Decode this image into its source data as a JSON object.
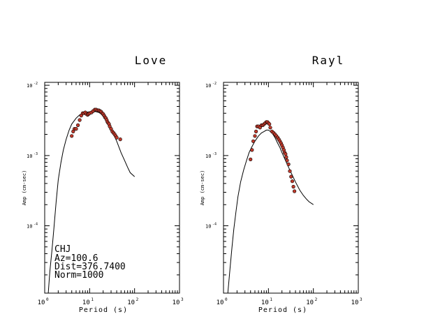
{
  "figure": {
    "station_info": [
      "CHJ",
      "Az=100.6",
      "Dist=376.7400",
      "Norm=1000"
    ]
  },
  "chart_data": [
    {
      "type": "scatter",
      "title": "Love",
      "xlabel": "Period (s)",
      "ylabel": "Amp (cm-sec)",
      "xscale": "log",
      "yscale": "log",
      "xlim": [
        1,
        1000
      ],
      "ylim": [
        1.1e-05,
        0.011
      ],
      "x_ticks": [
        {
          "label": "10",
          "exp": "0"
        },
        {
          "label": "10",
          "exp": "1"
        },
        {
          "label": "10",
          "exp": "2"
        },
        {
          "label": "10",
          "exp": "3"
        }
      ],
      "y_ticks": [
        {
          "label": "10",
          "exp": "-4"
        },
        {
          "label": "10",
          "exp": "-3"
        },
        {
          "label": "10",
          "exp": "-2"
        }
      ],
      "series": [
        {
          "kind": "observed",
          "color": "#c0392b",
          "x": [
            4.0,
            4.3,
            4.6,
            5.0,
            5.5,
            6.0,
            6.5,
            7.0,
            7.5,
            8.0,
            8.5,
            9.0,
            9.5,
            10.0,
            11.0,
            12.0,
            13.0,
            14.0,
            15.0,
            16.0,
            17.0,
            18.0,
            19.0,
            20.0,
            21.0,
            22.0,
            23.0,
            24.0,
            25.0,
            26.0,
            27.0,
            28.0,
            30.0,
            32.0,
            34.0,
            36.0,
            38.0,
            40.0,
            48.0
          ],
          "y": [
            0.0019,
            0.0022,
            0.0024,
            0.0024,
            0.0027,
            0.0032,
            0.0037,
            0.004,
            0.004,
            0.0041,
            0.0039,
            0.0038,
            0.0039,
            0.004,
            0.0041,
            0.0043,
            0.0045,
            0.0045,
            0.0044,
            0.0044,
            0.0043,
            0.0042,
            0.004,
            0.0039,
            0.0037,
            0.0035,
            0.0034,
            0.0032,
            0.003,
            0.0029,
            0.0028,
            0.0026,
            0.0024,
            0.0022,
            0.0021,
            0.002,
            0.0019,
            0.0018,
            0.0017
          ]
        },
        {
          "kind": "synthetic",
          "color": "#000000",
          "x": [
            1.2,
            1.3,
            1.45,
            1.6,
            1.8,
            2.0,
            2.3,
            2.6,
            3.0,
            3.5,
            4.0,
            5.0,
            6.0,
            7.0,
            8.0,
            10.0,
            12.0,
            14.0,
            16.0,
            18.0,
            20.0,
            25.0,
            30.0,
            40.0,
            50.0,
            60.0,
            70.0,
            80.0,
            100.0
          ],
          "y": [
            1.1e-05,
            2.2e-05,
            4.5e-05,
            9e-05,
            0.00022,
            0.00045,
            0.0008,
            0.0012,
            0.0017,
            0.0023,
            0.0028,
            0.0034,
            0.0038,
            0.004,
            0.0041,
            0.0042,
            0.0043,
            0.0042,
            0.0041,
            0.0039,
            0.0036,
            0.003,
            0.0024,
            0.0016,
            0.0011,
            0.00085,
            0.00068,
            0.00057,
            0.0005
          ]
        }
      ]
    },
    {
      "type": "scatter",
      "title": "Rayl",
      "xlabel": "Period (s)",
      "ylabel": "Amp (cm-sec)",
      "xscale": "log",
      "yscale": "log",
      "xlim": [
        1,
        1000
      ],
      "ylim": [
        1.1e-05,
        0.011
      ],
      "x_ticks": [
        {
          "label": "10",
          "exp": "0"
        },
        {
          "label": "10",
          "exp": "1"
        },
        {
          "label": "10",
          "exp": "2"
        },
        {
          "label": "10",
          "exp": "3"
        }
      ],
      "y_ticks": [
        {
          "label": "10",
          "exp": "-4"
        },
        {
          "label": "10",
          "exp": "-3"
        },
        {
          "label": "10",
          "exp": "-2"
        }
      ],
      "series": [
        {
          "kind": "observed",
          "color": "#c0392b",
          "x": [
            4.0,
            4.3,
            4.6,
            5.0,
            5.3,
            5.6,
            6.0,
            6.5,
            7.0,
            7.5,
            8.0,
            8.5,
            9.0,
            9.5,
            10.0,
            10.5,
            11.0,
            12.0,
            13.0,
            14.0,
            15.0,
            16.0,
            17.0,
            18.0,
            19.0,
            20.0,
            21.0,
            22.0,
            23.0,
            24.0,
            25.0,
            26.0,
            28.0,
            30.0,
            32.0,
            34.0,
            36.0,
            38.0
          ],
          "y": [
            0.00088,
            0.0012,
            0.0016,
            0.0019,
            0.0022,
            0.0026,
            0.0026,
            0.0025,
            0.0027,
            0.0027,
            0.0028,
            0.0029,
            0.003,
            0.003,
            0.0029,
            0.0028,
            0.0025,
            0.0022,
            0.0021,
            0.002,
            0.0019,
            0.0018,
            0.0017,
            0.0016,
            0.0015,
            0.0014,
            0.0013,
            0.0012,
            0.0011,
            0.00105,
            0.00095,
            0.00085,
            0.00075,
            0.0006,
            0.0005,
            0.00043,
            0.00036,
            0.00031
          ]
        },
        {
          "kind": "synthetic",
          "color": "#000000",
          "x": [
            1.25,
            1.4,
            1.55,
            1.7,
            1.9,
            2.1,
            2.4,
            2.8,
            3.2,
            3.7,
            4.2,
            5.0,
            6.0,
            7.0,
            8.0,
            9.0,
            10.0,
            11.0,
            12.0,
            14.0,
            16.0,
            18.0,
            20.0,
            25.0,
            30.0,
            40.0,
            50.0,
            60.0,
            70.0,
            80.0,
            100.0
          ],
          "y": [
            1.1e-05,
            2.5e-05,
            5e-05,
            9e-05,
            0.00016,
            0.00026,
            0.00042,
            0.00062,
            0.00082,
            0.0011,
            0.0013,
            0.0016,
            0.0019,
            0.0021,
            0.0022,
            0.0023,
            0.0023,
            0.0022,
            0.0021,
            0.0018,
            0.0015,
            0.0013,
            0.0011,
            0.0008,
            0.00062,
            0.00042,
            0.00032,
            0.00027,
            0.00024,
            0.00022,
            0.0002
          ]
        }
      ]
    }
  ]
}
